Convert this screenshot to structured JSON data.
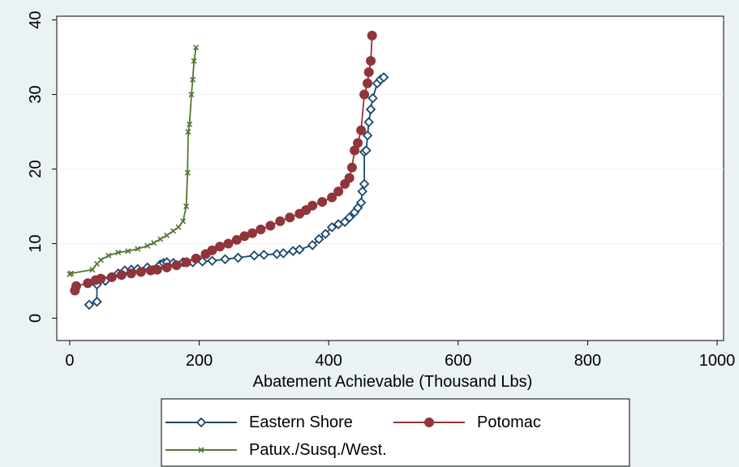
{
  "chart_data": {
    "type": "line",
    "title": "",
    "xlabel": "Abatement Achievable (Thousand Lbs)",
    "ylabel": "",
    "xlim": [
      -20,
      1010
    ],
    "ylim": [
      -3,
      40.5
    ],
    "xticks": [
      0,
      200,
      400,
      600,
      800,
      1000
    ],
    "yticks": [
      0,
      10,
      20,
      30,
      40
    ],
    "grid": "horizontal",
    "legend_position": "bottom",
    "series": [
      {
        "name": "Eastern Shore",
        "color": "#1a476f",
        "marker": "diamond",
        "x": [
          30,
          42,
          42,
          55,
          65,
          75,
          85,
          95,
          105,
          120,
          140,
          145,
          150,
          160,
          175,
          190,
          205,
          220,
          240,
          260,
          285,
          300,
          320,
          330,
          345,
          355,
          375,
          385,
          395,
          405,
          415,
          425,
          432,
          440,
          445,
          450,
          452,
          455,
          455,
          458,
          460,
          462,
          465,
          468,
          475,
          480,
          485
        ],
        "y": [
          1.8,
          2.2,
          4.5,
          5.0,
          5.5,
          6.0,
          6.4,
          6.5,
          6.6,
          6.8,
          7.2,
          7.4,
          7.5,
          7.4,
          7.5,
          7.5,
          7.6,
          7.7,
          7.9,
          8.1,
          8.4,
          8.5,
          8.6,
          8.7,
          9.0,
          9.2,
          9.8,
          10.6,
          11.3,
          12.2,
          12.6,
          12.9,
          13.5,
          14.2,
          14.8,
          15.5,
          17.0,
          18.0,
          22.3,
          22.5,
          24.5,
          26.3,
          28.0,
          29.5,
          31.5,
          32.0,
          32.3
        ]
      },
      {
        "name": "Potomac",
        "color": "#90353b",
        "marker": "circle",
        "x": [
          8,
          10,
          28,
          40,
          48,
          65,
          80,
          95,
          110,
          125,
          135,
          150,
          165,
          180,
          195,
          210,
          220,
          232,
          245,
          258,
          270,
          282,
          295,
          310,
          325,
          340,
          355,
          365,
          375,
          390,
          405,
          415,
          425,
          432,
          436,
          440,
          445,
          450,
          455,
          460,
          462,
          465,
          467
        ],
        "y": [
          3.7,
          4.3,
          4.7,
          5.1,
          5.3,
          5.5,
          5.8,
          6.0,
          6.2,
          6.4,
          6.5,
          6.8,
          7.1,
          7.5,
          8.0,
          8.6,
          9.1,
          9.6,
          10.0,
          10.5,
          11.0,
          11.4,
          11.9,
          12.4,
          13.0,
          13.5,
          14.0,
          14.5,
          15.1,
          15.6,
          16.2,
          17.0,
          18.0,
          18.8,
          20.2,
          22.5,
          23.5,
          25.2,
          30.0,
          31.5,
          33.0,
          34.5,
          37.9
        ]
      },
      {
        "name": "Patux./Susq./West.",
        "color": "#55752f",
        "marker": "x",
        "x": [
          0,
          2,
          35,
          42,
          48,
          60,
          75,
          90,
          105,
          120,
          130,
          140,
          150,
          160,
          168,
          175,
          180,
          182,
          183,
          185,
          188,
          190,
          192,
          195
        ],
        "y": [
          5.9,
          6.0,
          6.5,
          7.3,
          7.8,
          8.4,
          8.8,
          9.0,
          9.3,
          9.7,
          10.1,
          10.6,
          11.1,
          11.7,
          12.2,
          13.0,
          15.0,
          19.5,
          25.0,
          26.0,
          30.0,
          32.0,
          34.5,
          36.3
        ]
      }
    ]
  }
}
